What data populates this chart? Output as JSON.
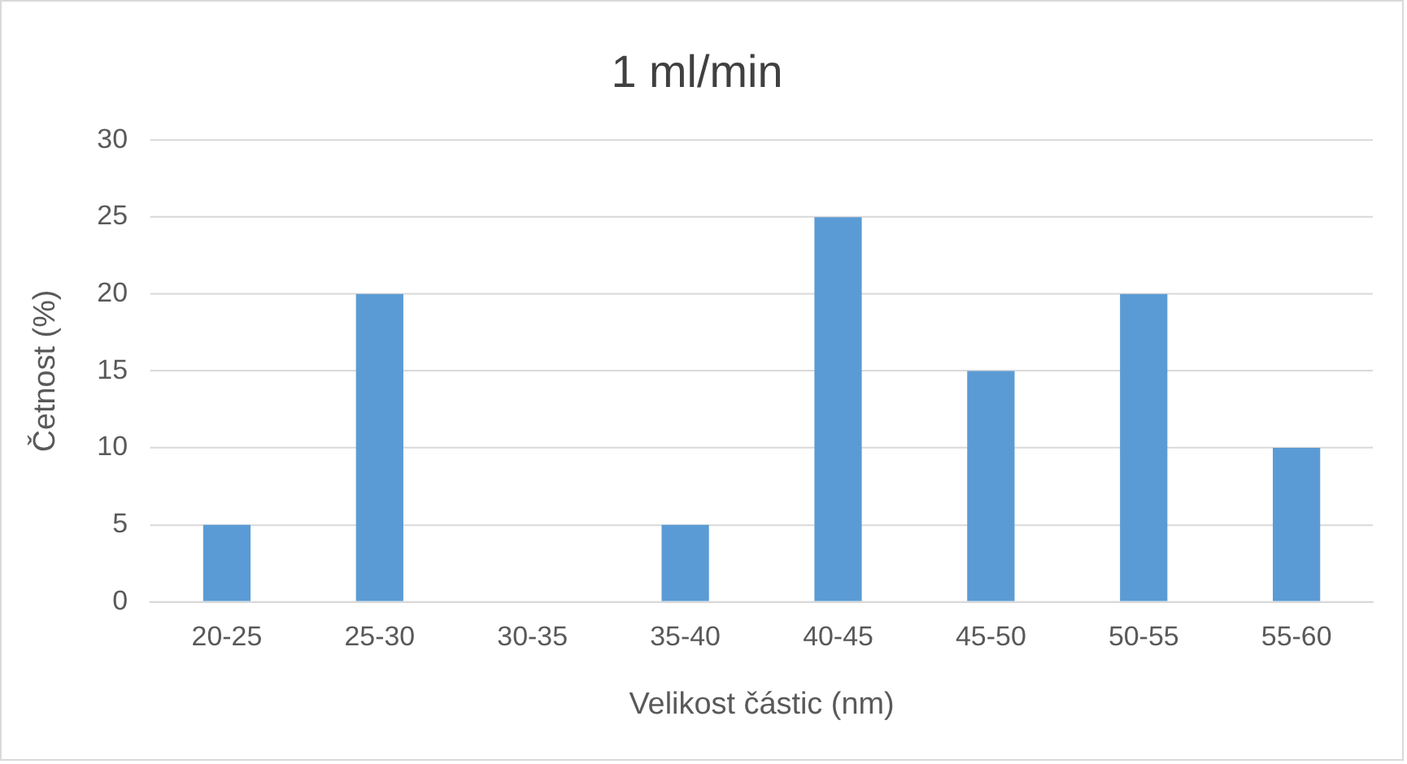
{
  "chart_data": {
    "type": "bar",
    "title": "1 ml/min",
    "xlabel": "Velikost částic (nm)",
    "ylabel": "Četnost (%)",
    "categories": [
      "20-25",
      "25-30",
      "30-35",
      "35-40",
      "40-45",
      "45-50",
      "50-55",
      "55-60"
    ],
    "values": [
      5,
      20,
      0,
      5,
      25,
      15,
      20,
      10
    ],
    "color": "#5b9bd5",
    "ylim": [
      0,
      30
    ],
    "yticks": [
      0,
      5,
      10,
      15,
      20,
      25,
      30
    ],
    "grid": "y"
  }
}
